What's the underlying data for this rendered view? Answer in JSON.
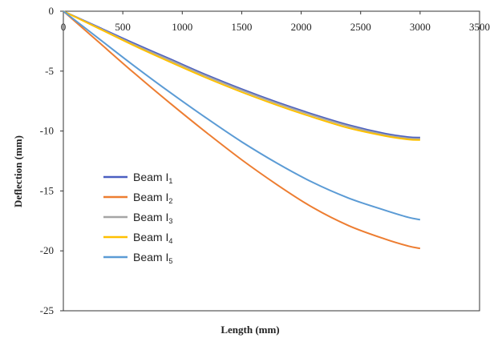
{
  "chart_data": {
    "type": "line",
    "xlabel": "Length (mm)",
    "ylabel": "Deflection (mm)",
    "xlim": [
      0,
      3500
    ],
    "ylim": [
      -25,
      0
    ],
    "xticks": [
      0,
      500,
      1000,
      1500,
      2000,
      2500,
      3000,
      3500
    ],
    "yticks": [
      0,
      -5,
      -10,
      -15,
      -20,
      -25
    ],
    "grid": false,
    "legend_position": "lower-left",
    "series": [
      {
        "name": "Beam I",
        "subscript": "1",
        "color": "#4a5fc1",
        "x": [
          0,
          300,
          600,
          900,
          1200,
          1500,
          1800,
          2100,
          2400,
          2700,
          2900,
          3000
        ],
        "y": [
          0,
          -1.35,
          -2.7,
          -4.0,
          -5.3,
          -6.5,
          -7.6,
          -8.6,
          -9.5,
          -10.2,
          -10.5,
          -10.55
        ]
      },
      {
        "name": "Beam I",
        "subscript": "2",
        "color": "#ed7d31",
        "x": [
          0,
          300,
          600,
          900,
          1200,
          1500,
          1800,
          2100,
          2400,
          2700,
          2900,
          3000
        ],
        "y": [
          0,
          -2.6,
          -5.2,
          -7.7,
          -10.1,
          -12.4,
          -14.5,
          -16.4,
          -17.9,
          -19.0,
          -19.6,
          -19.8
        ]
      },
      {
        "name": "Beam I",
        "subscript": "3",
        "color": "#a5a5a5",
        "x": [
          0,
          300,
          600,
          900,
          1200,
          1500,
          1800,
          2100,
          2400,
          2700,
          2900,
          3000
        ],
        "y": [
          0,
          -1.4,
          -2.8,
          -4.1,
          -5.4,
          -6.6,
          -7.7,
          -8.7,
          -9.6,
          -10.3,
          -10.6,
          -10.65
        ]
      },
      {
        "name": "Beam I",
        "subscript": "4",
        "color": "#ffc000",
        "x": [
          0,
          300,
          600,
          900,
          1200,
          1500,
          1800,
          2100,
          2400,
          2700,
          2900,
          3000
        ],
        "y": [
          0,
          -1.45,
          -2.9,
          -4.25,
          -5.55,
          -6.75,
          -7.85,
          -8.85,
          -9.75,
          -10.4,
          -10.7,
          -10.75
        ]
      },
      {
        "name": "Beam I",
        "subscript": "5",
        "color": "#5b9bd5",
        "x": [
          0,
          300,
          600,
          900,
          1200,
          1500,
          1800,
          2100,
          2400,
          2700,
          2900,
          3000
        ],
        "y": [
          0,
          -2.3,
          -4.6,
          -6.8,
          -8.9,
          -10.9,
          -12.7,
          -14.3,
          -15.6,
          -16.6,
          -17.2,
          -17.4
        ]
      }
    ]
  }
}
